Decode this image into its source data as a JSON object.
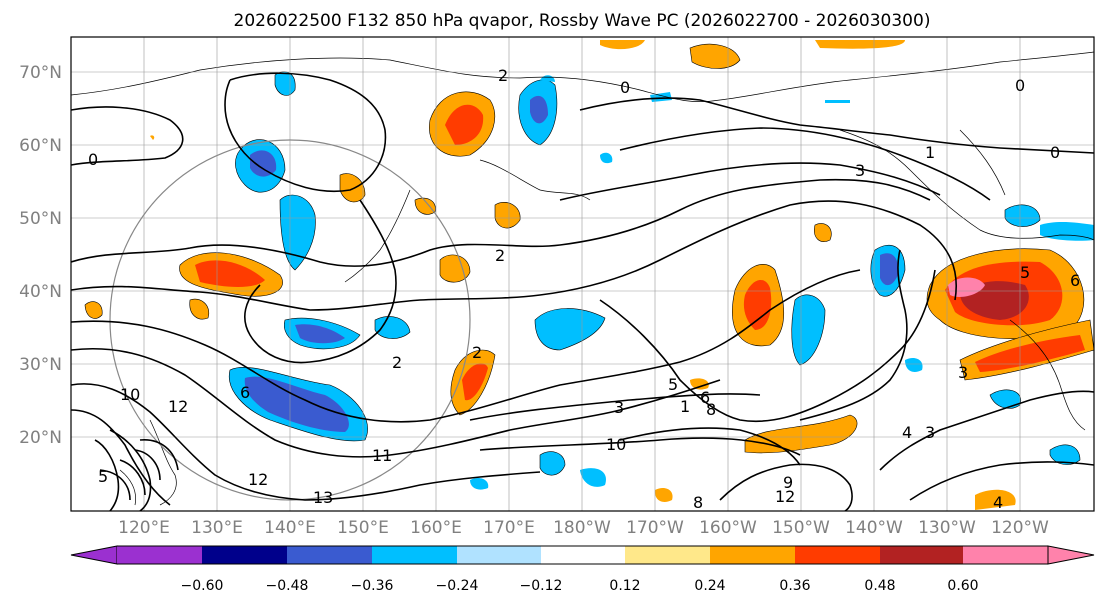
{
  "title": "2026022500 F132 850 hPa qvapor, Rossby Wave PC (2026022700 - 2026030300)",
  "lat_labels": [
    "70°N",
    "60°N",
    "50°N",
    "40°N",
    "30°N",
    "20°N"
  ],
  "lon_labels": [
    "120°E",
    "130°E",
    "140°E",
    "150°E",
    "160°E",
    "170°E",
    "180°W",
    "170°W",
    "160°W",
    "150°W",
    "140°W",
    "130°W",
    "120°W"
  ],
  "contour_labels": [
    "0",
    "0",
    "0",
    "0",
    "1",
    "3",
    "2",
    "2",
    "3",
    "3",
    "5",
    "5",
    "6",
    "8",
    "10",
    "11",
    "12",
    "13",
    "6",
    "4",
    "8",
    "10",
    "12",
    "4",
    "5",
    "3",
    "2",
    "2",
    "6",
    "9",
    "12",
    "1",
    "11"
  ],
  "colorbar": {
    "colors": [
      "#9b30d0",
      "#00008b",
      "#3a5bd0",
      "#00bfff",
      "#b0e2ff",
      "#ffffff",
      "#ffe88a",
      "#ffa500",
      "#ff3c00",
      "#b22222",
      "#ff82ab"
    ],
    "tick_labels": [
      "−0.60",
      "−0.48",
      "−0.36",
      "−0.24",
      "−0.12",
      "0.12",
      "0.24",
      "0.36",
      "0.48",
      "0.60"
    ]
  },
  "colors": {
    "grid": "#999999",
    "contour": "#000000",
    "axis_label": "#808080"
  }
}
